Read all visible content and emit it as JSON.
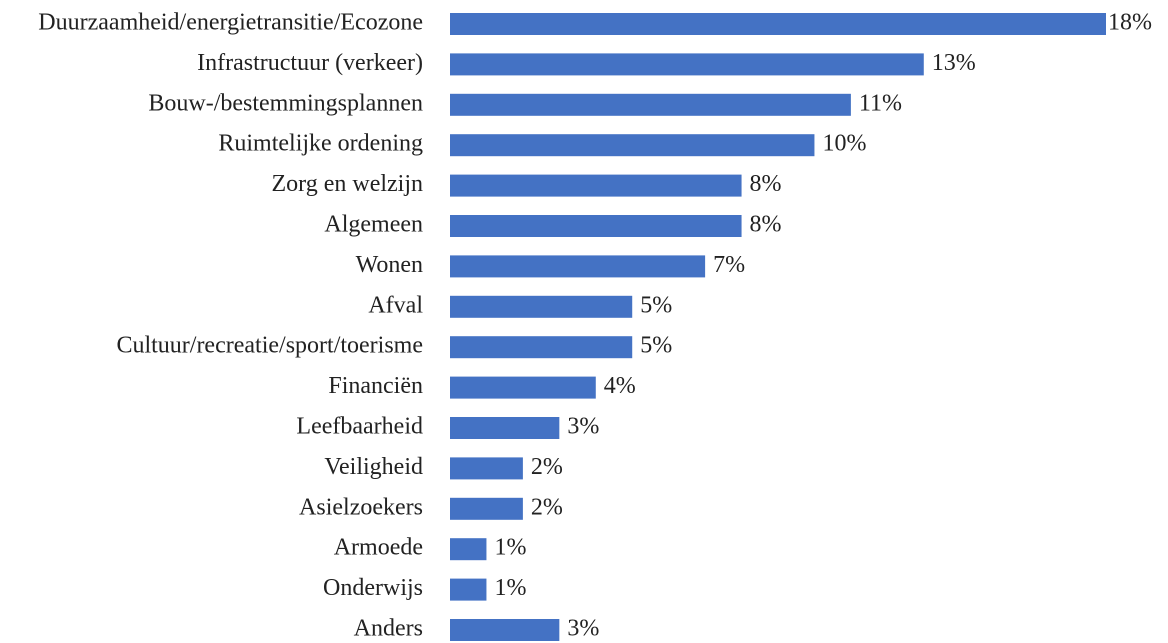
{
  "chart_data": {
    "type": "bar",
    "orientation": "horizontal",
    "color": "#4472c4",
    "categories": [
      "Duurzaamheid/energietransitie/Ecozone",
      "Infrastructuur (verkeer)",
      "Bouw-/bestemmingsplannen",
      "Ruimtelijke ordening",
      "Zorg en welzijn",
      "Algemeen",
      "Wonen",
      "Afval",
      "Cultuur/recreatie/sport/toerisme",
      "Financiën",
      "Leefbaarheid",
      "Veiligheid",
      "Asielzoekers",
      "Armoede",
      "Onderwijs",
      "Anders"
    ],
    "values": [
      18,
      13,
      11,
      10,
      8,
      8,
      7,
      5,
      5,
      4,
      3,
      2,
      2,
      1,
      1,
      3
    ],
    "value_labels": [
      "18%",
      "13%",
      "11%",
      "10%",
      "8%",
      "8%",
      "7%",
      "5%",
      "5%",
      "4%",
      "3%",
      "2%",
      "2%",
      "1%",
      "1%",
      "3%"
    ]
  }
}
